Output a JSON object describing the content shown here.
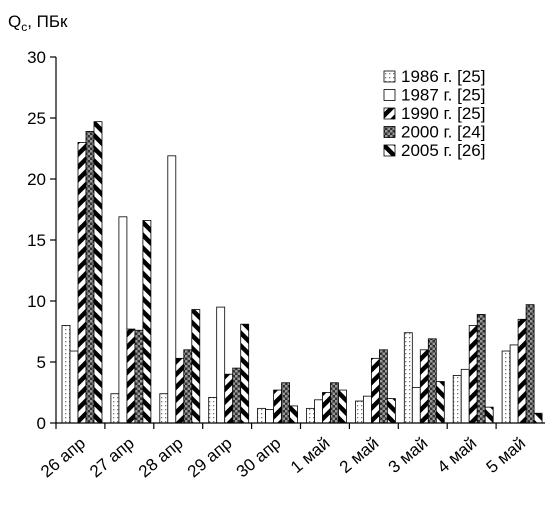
{
  "chart_data": {
    "type": "bar",
    "ylabel_main": "Q",
    "ylabel_sub": "c",
    "ylabel_unit": ", ПБк",
    "ylim": [
      0,
      30
    ],
    "yticks": [
      0,
      5,
      10,
      15,
      20,
      25,
      30
    ],
    "categories": [
      "26 апр",
      "27 апр",
      "28 апр",
      "29 апр",
      "30 апр",
      "1 май",
      "2 май",
      "3 май",
      "4 май",
      "5 май"
    ],
    "legend_position": "top-right",
    "series": [
      {
        "name": "1986 г. [25]",
        "pattern": "dots",
        "values": [
          8.0,
          2.4,
          2.4,
          2.1,
          1.2,
          1.2,
          1.8,
          7.4,
          3.9,
          5.9
        ]
      },
      {
        "name": "1987 г. [25]",
        "pattern": "white",
        "values": [
          5.9,
          16.9,
          21.9,
          9.5,
          1.1,
          1.9,
          2.2,
          2.9,
          4.4,
          6.4
        ]
      },
      {
        "name": "1990 г. [25]",
        "pattern": "diag-up",
        "values": [
          23.0,
          7.7,
          5.3,
          4.0,
          2.7,
          2.5,
          5.3,
          6.0,
          8.0,
          8.5
        ]
      },
      {
        "name": "2000 г. [24]",
        "pattern": "checker",
        "values": [
          23.9,
          7.6,
          6.0,
          4.5,
          3.3,
          3.3,
          6.0,
          6.9,
          8.9,
          9.7
        ]
      },
      {
        "name": "2005 г. [26]",
        "pattern": "diag-down",
        "values": [
          24.7,
          16.6,
          9.3,
          8.1,
          1.4,
          2.7,
          2.0,
          3.4,
          1.3,
          0.8
        ]
      }
    ]
  }
}
